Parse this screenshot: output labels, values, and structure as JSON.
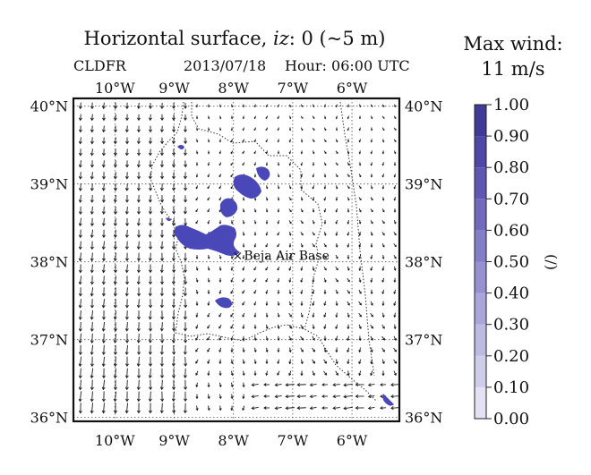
{
  "header": {
    "title_prefix": "Horizontal surface, ",
    "title_var": "iz",
    "title_suffix": ": 0 (~5 m)",
    "field": "CLDFR",
    "date": "2013/07/18",
    "hour": "Hour: 06:00 UTC"
  },
  "wind": {
    "label": "Max wind:",
    "value": "11 m/s"
  },
  "map": {
    "lon_labels": [
      "10°W",
      "9°W",
      "8°W",
      "7°W",
      "6°W"
    ],
    "lat_labels": [
      "40°N",
      "39°N",
      "38°N",
      "37°N",
      "36°N"
    ],
    "lon_range": [
      -10.7,
      -5.2
    ],
    "lat_range": [
      35.95,
      40.1
    ],
    "station": {
      "name": "Beja Air Base",
      "lon": -7.93,
      "lat": 38.08
    }
  },
  "colorbar": {
    "ticks": [
      "1.00",
      "0.90",
      "0.80",
      "0.70",
      "0.60",
      "0.50",
      "0.40",
      "0.30",
      "0.20",
      "0.10",
      "0.00"
    ],
    "unit": "(/)",
    "colors": [
      "#e3e1f3",
      "#d0cdeb",
      "#bdb9e3",
      "#aaa5da",
      "#9791d1",
      "#847dc8",
      "#7269bf",
      "#6057b5",
      "#4f46a8",
      "#403a98"
    ]
  },
  "colors": {
    "cloud": "#4a48b8",
    "arrow": "#1a1a1a",
    "coast": "#333333"
  }
}
